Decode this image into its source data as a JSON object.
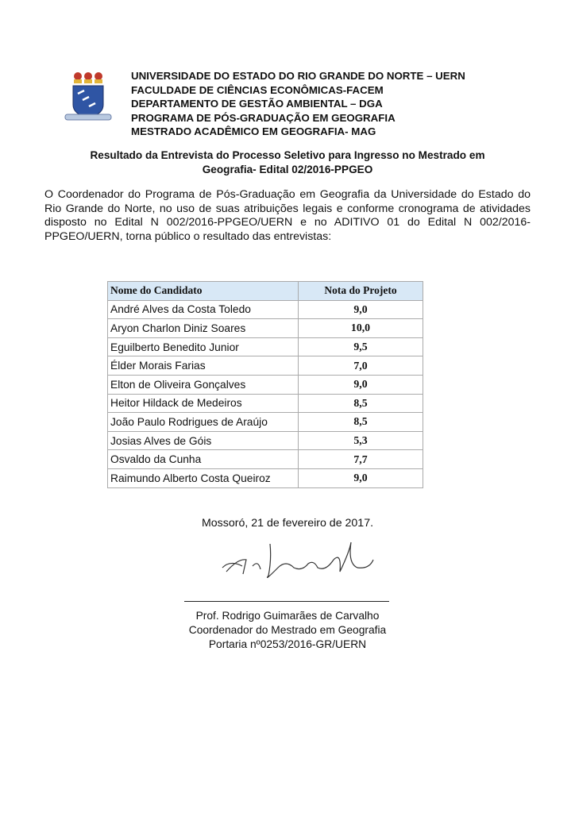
{
  "header": {
    "lines": [
      "UNIVERSIDADE DO ESTADO DO RIO GRANDE DO NORTE – UERN",
      "FACULDADE DE CIÊNCIAS ECONÔMICAS-FACEM",
      "DEPARTAMENTO DE GESTÃO AMBIENTAL – DGA",
      "PROGRAMA DE PÓS-GRADUAÇÃO EM GEOGRAFIA",
      "MESTRADO ACADÊMICO EM GEOGRAFIA- MAG"
    ]
  },
  "title": {
    "line1": "Resultado da Entrevista do Processo Seletivo para Ingresso no Mestrado em",
    "line2": "Geografia- Edital 02/2016-PPGEO"
  },
  "paragraph": "O Coordenador do Programa de Pós-Graduação em Geografia da Universidade do Estado do Rio Grande do Norte, no uso de suas atribuições legais e conforme cronograma de atividades disposto no Edital N 002/2016-PPGEO/UERN e no ADITIVO 01 do Edital N 002/2016-PPGEO/UERN, torna público o resultado das entrevistas:",
  "table": {
    "headers": [
      "Nome do Candidato",
      "Nota do Projeto"
    ],
    "header_bg": "#d8e8f6",
    "rows": [
      [
        "André Alves da Costa Toledo",
        "9,0"
      ],
      [
        "Aryon Charlon Diniz Soares",
        "10,0"
      ],
      [
        "Eguilberto Benedito Junior",
        "9,5"
      ],
      [
        "Élder Morais Farias",
        "7,0"
      ],
      [
        "Elton de Oliveira Gonçalves",
        "9,0"
      ],
      [
        "Heitor Hildack de Medeiros",
        "8,5"
      ],
      [
        "João Paulo Rodrigues de Araújo",
        "8,5"
      ],
      [
        "Josias Alves de Góis",
        "5,3"
      ],
      [
        "Osvaldo da Cunha",
        "7,7"
      ],
      [
        "Raimundo Alberto Costa Queiroz",
        "9,0"
      ]
    ]
  },
  "date": "Mossoró, 21 de fevereiro de 2017.",
  "signatory": {
    "name": "Prof. Rodrigo Guimarães de Carvalho",
    "role": "Coordenador do Mestrado em Geografia",
    "ordinance": "Portaria nº0253/2016-GR/UERN"
  }
}
